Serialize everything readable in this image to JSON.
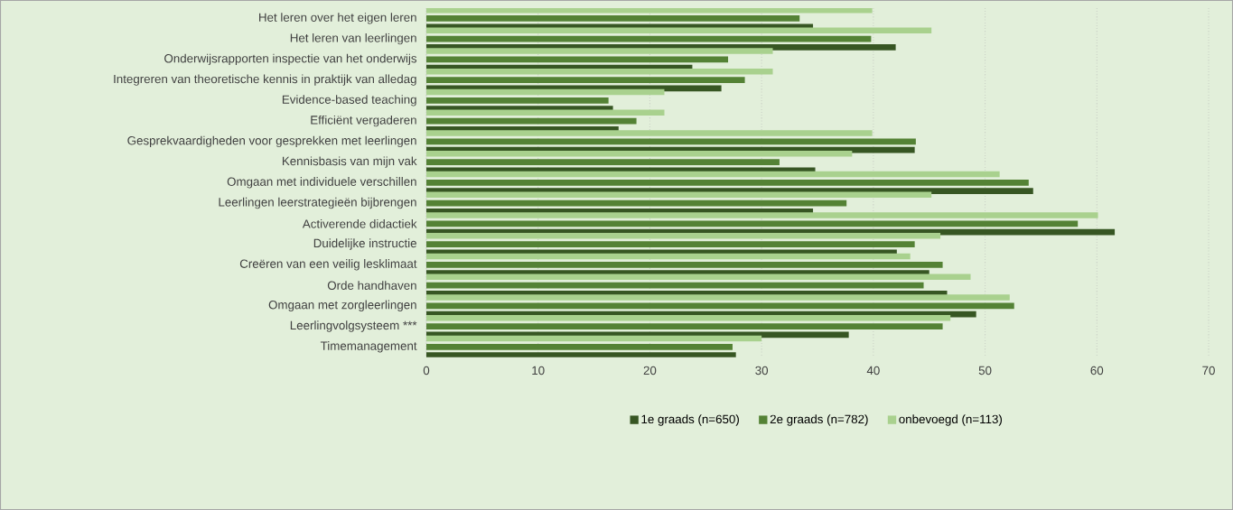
{
  "chart_data": {
    "type": "bar",
    "orientation": "horizontal",
    "categories": [
      "Het leren over het eigen leren",
      "Het leren van leerlingen",
      "Onderwijsrapporten inspectie van het onderwijs",
      "Integreren van theoretische kennis in praktijk van alledag",
      "Evidence-based teaching",
      "Efficiënt vergaderen",
      "Gesprekvaardigheden voor gesprekken met leerlingen",
      "Kennisbasis van mijn vak",
      "Omgaan met individuele verschillen",
      "Leerlingen leerstrategieën bijbrengen",
      "Activerende didactiek",
      "Duidelijke instructie",
      "Creëren van een veilig lesklimaat",
      "Orde handhaven",
      "Omgaan met zorgleerlingen",
      "Leerlingvolgsysteem ***",
      "Timemanagement"
    ],
    "series": [
      {
        "name": "1e graads (n=650)",
        "color": "#375623",
        "values": [
          34.6,
          42.0,
          23.8,
          26.4,
          16.7,
          17.2,
          43.7,
          34.8,
          54.3,
          34.6,
          61.6,
          42.1,
          45.0,
          46.6,
          49.2,
          37.8,
          27.7
        ]
      },
      {
        "name": "2e graads (n=782)",
        "color": "#548235",
        "values": [
          33.4,
          39.8,
          27.0,
          28.5,
          16.3,
          18.8,
          43.8,
          31.6,
          53.9,
          37.6,
          58.3,
          43.7,
          46.2,
          44.5,
          52.6,
          46.2,
          27.4
        ]
      },
      {
        "name": "onbevoegd (n=113)",
        "color": "#a9d18e",
        "values": [
          39.9,
          45.2,
          31.0,
          31.0,
          21.3,
          21.3,
          39.9,
          38.1,
          51.3,
          45.2,
          60.1,
          46.0,
          43.3,
          48.7,
          52.2,
          46.9,
          30.0
        ]
      }
    ],
    "xlim": [
      0,
      70
    ],
    "xticks": [
      0,
      10,
      20,
      30,
      40,
      50,
      60,
      70
    ],
    "grid": "x",
    "legend": "bottom"
  }
}
